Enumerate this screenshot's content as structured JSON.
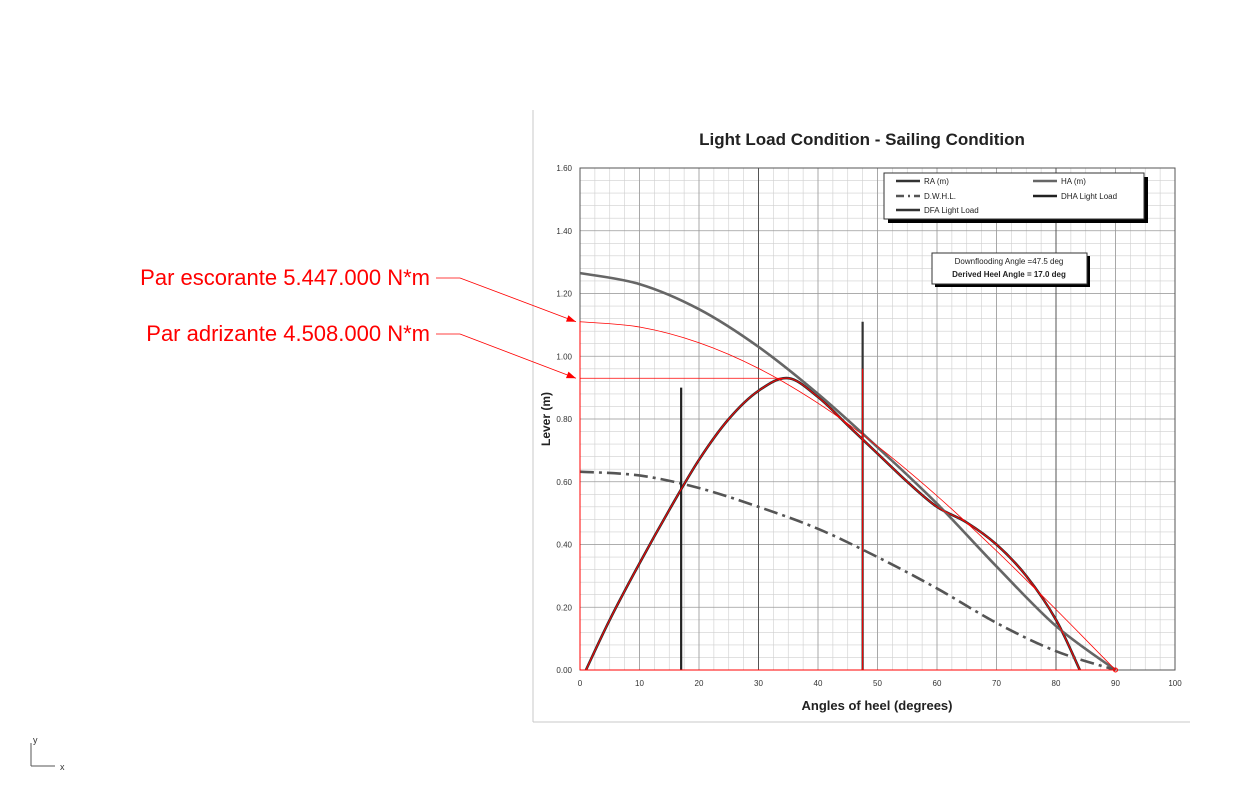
{
  "annotations": {
    "heeling_label": "Par escorante 5.447.000 N*m",
    "righting_label": "Par adrizante 4.508.000 N*m",
    "heeling_value": 1.11,
    "righting_value": 0.93,
    "color": "#ff0000"
  },
  "axis_triad": {
    "y": "y",
    "x": "x"
  },
  "chart_data": {
    "type": "line",
    "title": "Light Load Condition - Sailing Condition",
    "xlabel": "Angles of heel (degrees)",
    "ylabel": "Lever (m)",
    "xlim": [
      0,
      100
    ],
    "ylim": [
      0,
      1.6
    ],
    "x_ticks": [
      0,
      10,
      20,
      30,
      40,
      50,
      60,
      70,
      80,
      90,
      100
    ],
    "x_tick_labels": [
      "0",
      "10",
      "20",
      "30",
      "40",
      "50",
      "60",
      "70",
      "80",
      "90",
      "100"
    ],
    "y_ticks": [
      0,
      0.2,
      0.4,
      0.6,
      0.8,
      1.0,
      1.2,
      1.4,
      1.6
    ],
    "y_tick_labels": [
      "0.00",
      "0.20",
      "0.40",
      "0.60",
      "0.80",
      "1.00",
      "1.20",
      "1.40",
      "1.60"
    ],
    "grid": true,
    "legend_position": "top-right",
    "series": [
      {
        "name": "RA (m)",
        "color": "#333333",
        "dash": "solid",
        "x": [
          1,
          5,
          10,
          15,
          20,
          25,
          30,
          35,
          40,
          45,
          50,
          55,
          60,
          65,
          70,
          75,
          80,
          84
        ],
        "y": [
          0.0,
          0.16,
          0.34,
          0.51,
          0.67,
          0.8,
          0.89,
          0.93,
          0.87,
          0.78,
          0.69,
          0.6,
          0.52,
          0.47,
          0.4,
          0.3,
          0.16,
          0.0
        ]
      },
      {
        "name": "HA (m)",
        "color": "#666666",
        "dash": "solid",
        "x": [
          0,
          10,
          20,
          30,
          40,
          50,
          60,
          70,
          80,
          90
        ],
        "y": [
          1.265,
          1.23,
          1.15,
          1.03,
          0.88,
          0.71,
          0.53,
          0.33,
          0.14,
          0.0
        ]
      },
      {
        "name": "D.W.H.L.",
        "color": "#555555",
        "dash": "dashdot",
        "x": [
          0,
          10,
          20,
          30,
          40,
          50,
          60,
          70,
          80,
          90
        ],
        "y": [
          0.632,
          0.62,
          0.58,
          0.52,
          0.45,
          0.36,
          0.26,
          0.15,
          0.06,
          0.0
        ]
      },
      {
        "name": "DHA Light Load",
        "color": "#222222",
        "dash": "solid",
        "x": [
          17,
          17
        ],
        "y": [
          0.0,
          0.9
        ]
      },
      {
        "name": "DFA Light Load",
        "color": "#333333",
        "dash": "solid",
        "x": [
          47.5,
          47.5
        ],
        "y": [
          0.0,
          1.11
        ]
      }
    ],
    "vertical_lines_extra": [
      {
        "x": 30,
        "y": [
          0,
          1.6
        ]
      },
      {
        "x": 80,
        "y": [
          0,
          1.6
        ]
      }
    ],
    "info_box": [
      "Downflooding Angle =47.5 deg",
      "Derived Heel Angle = 17.0 deg"
    ]
  }
}
